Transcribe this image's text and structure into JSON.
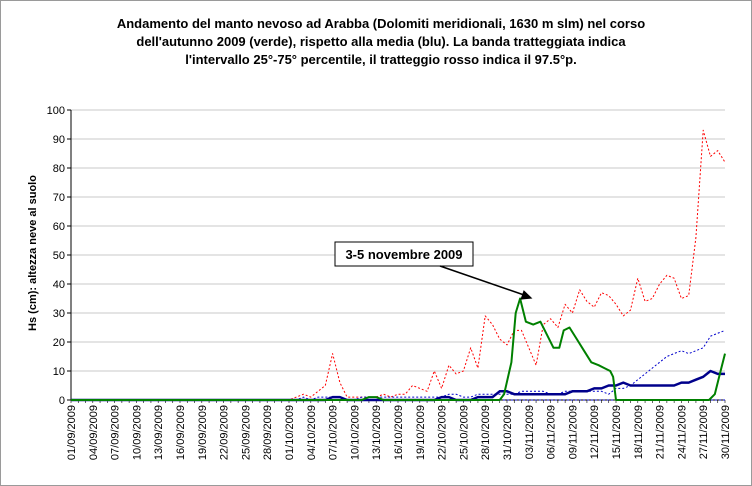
{
  "chart_data": {
    "type": "line",
    "title_lines": [
      "Andamento del manto nevoso ad Arabba (Dolomiti meridionali, 1630 m slm) nel corso",
      "dell'autunno 2009 (verde), rispetto alla media (blu). La banda tratteggiata indica",
      "l'intervallo 25°-75° percentile, il tratteggio rosso indica il 97.5°p."
    ],
    "ylabel": "Hs (cm): altezza neve al suolo",
    "xlabel": "",
    "ylim": [
      0,
      100
    ],
    "y_ticks": [
      "0",
      "10",
      "20",
      "30",
      "40",
      "50",
      "60",
      "70",
      "80",
      "90",
      "100"
    ],
    "x_tick_labels": [
      "01/09/2009",
      "04/09/2009",
      "07/09/2009",
      "10/09/2009",
      "13/09/2009",
      "16/09/2009",
      "19/09/2009",
      "22/09/2009",
      "25/09/2009",
      "28/09/2009",
      "01/10/2009",
      "04/10/2009",
      "07/10/2009",
      "10/10/2009",
      "13/10/2009",
      "16/10/2009",
      "19/10/2009",
      "22/10/2009",
      "25/10/2009",
      "28/10/2009",
      "31/10/2009",
      "03/11/2009",
      "06/11/2009",
      "09/11/2009",
      "12/11/2009",
      "15/11/2009",
      "18/11/2009",
      "21/11/2009",
      "24/11/2009",
      "27/11/2009",
      "30/11/2009"
    ],
    "x_days": 90,
    "gridlines": "horizontal",
    "annotation": {
      "text": "3-5 novembre 2009",
      "x": 63.5,
      "y": 35
    },
    "series": [
      {
        "key": "p975",
        "color": "#ff0000",
        "style": "dotted",
        "width": 1,
        "x": [
          0,
          30,
          32,
          33,
          34,
          35,
          36,
          37,
          38,
          39,
          40,
          41,
          42,
          43,
          44,
          45,
          46,
          47,
          48,
          49,
          50,
          51,
          52,
          53,
          54,
          55,
          56,
          57,
          58,
          59,
          60,
          61,
          62,
          63,
          64,
          65,
          66,
          67,
          68,
          69,
          70,
          71,
          72,
          73,
          74,
          75,
          76,
          77,
          78,
          79,
          80,
          81,
          82,
          83,
          84,
          85,
          86,
          87,
          88,
          89,
          90
        ],
        "y": [
          0,
          0,
          2,
          1,
          3,
          5,
          16,
          6,
          1,
          1,
          1,
          1,
          1,
          2,
          1,
          2,
          2,
          5,
          4,
          3,
          10,
          4,
          12,
          9,
          10,
          18,
          11,
          29,
          26,
          21,
          19,
          24,
          24,
          18,
          12,
          26,
          28,
          25,
          33,
          30,
          38,
          34,
          32,
          37,
          36,
          33,
          29,
          31,
          42,
          34,
          35,
          40,
          43,
          42,
          35,
          36,
          56,
          93,
          84,
          86,
          82
        ]
      },
      {
        "key": "p75",
        "color": "#0000cc",
        "style": "dotted",
        "width": 1,
        "x": [
          0,
          31,
          32,
          33,
          34,
          35,
          36,
          37,
          38,
          39,
          40,
          41,
          42,
          43,
          44,
          45,
          46,
          47,
          48,
          49,
          50,
          51,
          52,
          53,
          54,
          55,
          56,
          57,
          58,
          59,
          60,
          61,
          62,
          63,
          64,
          65,
          66,
          67,
          68,
          69,
          70,
          71,
          72,
          73,
          74,
          75,
          76,
          77,
          78,
          79,
          80,
          81,
          82,
          83,
          84,
          85,
          86,
          87,
          88,
          89,
          90
        ],
        "y": [
          0,
          0,
          1,
          0,
          1,
          1,
          1,
          1,
          0,
          0,
          1,
          1,
          1,
          1,
          1,
          1,
          1,
          1,
          1,
          1,
          1,
          1,
          2,
          2,
          1,
          1,
          2,
          2,
          2,
          2,
          2,
          2,
          3,
          3,
          3,
          3,
          2,
          2,
          3,
          3,
          3,
          3,
          3,
          3,
          2,
          4,
          4,
          5,
          7,
          9,
          11,
          13,
          15,
          16,
          17,
          16,
          17,
          18,
          22,
          23,
          24
        ]
      },
      {
        "key": "p25",
        "color": "#0000cc",
        "style": "dotted",
        "width": 1,
        "x": [
          0,
          90
        ],
        "y": [
          0,
          0
        ]
      },
      {
        "key": "media",
        "color": "#00008b",
        "style": "solid",
        "width": 2.5,
        "x": [
          0,
          35,
          36,
          37,
          38,
          39,
          40,
          41,
          42,
          43,
          44,
          45,
          46,
          47,
          48,
          49,
          50,
          51,
          52,
          53,
          54,
          55,
          56,
          57,
          58,
          59,
          60,
          61,
          62,
          63,
          64,
          65,
          66,
          67,
          68,
          69,
          70,
          71,
          72,
          73,
          74,
          75,
          76,
          77,
          78,
          79,
          80,
          81,
          82,
          83,
          84,
          85,
          86,
          87,
          88,
          89,
          90
        ],
        "y": [
          0,
          0,
          1,
          1,
          0,
          0,
          0,
          0,
          0,
          0,
          0,
          0,
          0,
          0,
          0,
          0,
          0,
          1,
          1,
          0,
          0,
          0,
          1,
          1,
          1,
          3,
          3,
          2,
          2,
          2,
          2,
          2,
          2,
          2,
          2,
          3,
          3,
          3,
          4,
          4,
          5,
          5,
          6,
          5,
          5,
          5,
          5,
          5,
          5,
          5,
          6,
          6,
          7,
          8,
          10,
          9,
          9
        ]
      },
      {
        "key": "autunno2009",
        "color": "#008000",
        "style": "solid",
        "width": 2,
        "x": [
          0,
          40,
          41,
          42,
          43,
          44,
          59,
          59.6,
          60.6,
          61.2,
          61.8,
          62.6,
          63.6,
          64.6,
          65.2,
          66.4,
          67.2,
          67.8,
          68.6,
          69.6,
          70.6,
          71.6,
          72.6,
          73.4,
          74.2,
          74.6,
          75,
          87,
          87.8,
          88.6,
          89.4,
          90
        ],
        "y": [
          0,
          0,
          1,
          1,
          0,
          0,
          0,
          2,
          13,
          30,
          35,
          27,
          26,
          27,
          24,
          18,
          18,
          24,
          25,
          21,
          17,
          13,
          12,
          11,
          10,
          8,
          0,
          0,
          0,
          2,
          10,
          16
        ]
      }
    ]
  }
}
